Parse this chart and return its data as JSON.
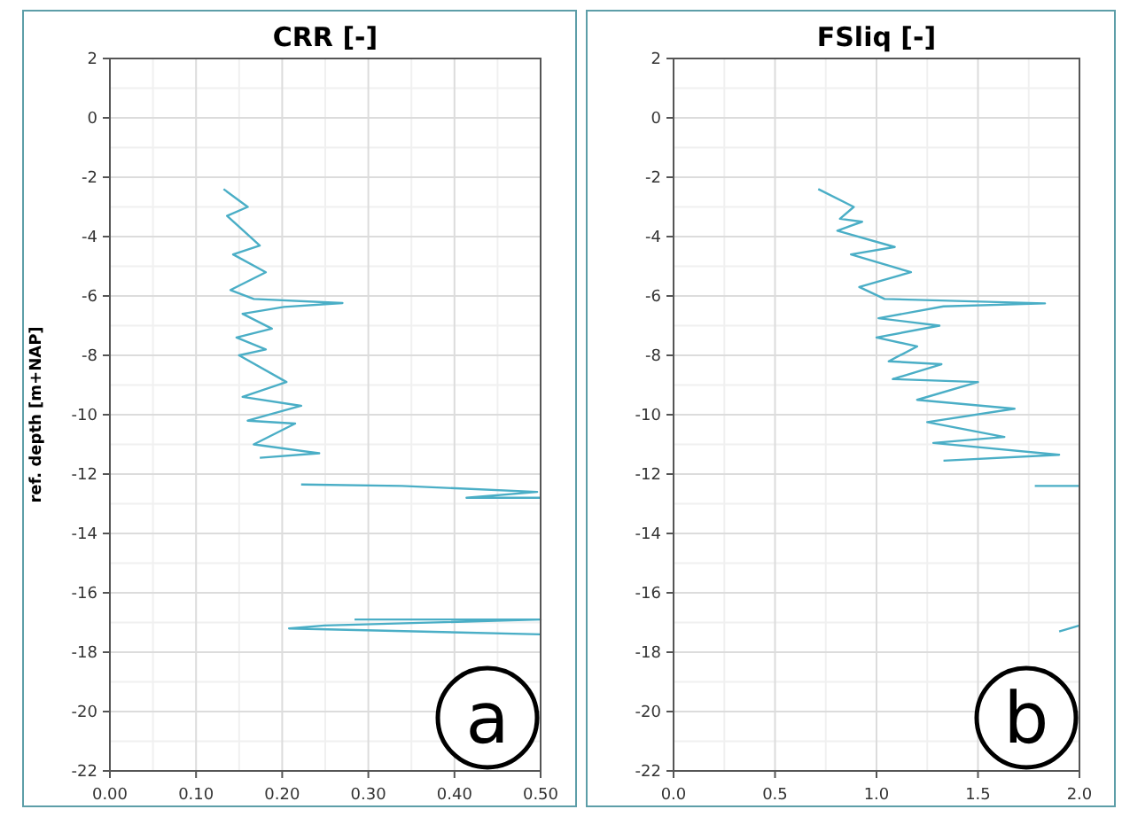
{
  "chart_data": [
    {
      "type": "line",
      "title": "CRR  [-]",
      "ylabel": "ref. depth [m+NAP]",
      "annotations": [
        "a"
      ],
      "xlim": [
        0,
        0.5
      ],
      "xticks": [
        {
          "value": 0,
          "label": "0.00"
        },
        {
          "value": 0.1,
          "label": "0.10"
        },
        {
          "value": 0.2,
          "label": "0.20"
        },
        {
          "value": 0.3,
          "label": "0.30"
        },
        {
          "value": 0.4,
          "label": "0.40"
        },
        {
          "value": 0.5,
          "label": "0.50"
        }
      ],
      "ylim": [
        -22,
        2
      ],
      "yticks": [
        2,
        0,
        -2,
        -4,
        -6,
        -8,
        -10,
        -12,
        -14,
        -16,
        -18,
        -20,
        -22
      ],
      "grid": true,
      "marker": "none",
      "line_style": "solid",
      "series": [
        {
          "color": "#4aaec6",
          "x": [
            0.132,
            0.16,
            0.136,
            0.174,
            0.143,
            0.181,
            0.14,
            0.167,
            0.27,
            0.202,
            0.154,
            0.188,
            0.147,
            0.181,
            0.15,
            0.205,
            0.154,
            0.222,
            0.16,
            0.215,
            0.167,
            0.243,
            0.174,
            null,
            0.222,
            0.339,
            0.496,
            0.414,
            0.5,
            null,
            0.284,
            0.5,
            0.249,
            0.208,
            0.5
          ],
          "values": [
            -2.4,
            -3.0,
            -3.3,
            -4.3,
            -4.6,
            -5.2,
            -5.8,
            -6.1,
            -6.24,
            -6.37,
            -6.6,
            -7.1,
            -7.4,
            -7.8,
            -8.0,
            -8.9,
            -9.4,
            -9.7,
            -10.2,
            -10.3,
            -11.0,
            -11.3,
            -11.45,
            null,
            -12.35,
            -12.4,
            -12.6,
            -12.8,
            -12.8,
            null,
            -16.9,
            -16.9,
            -17.1,
            -17.2,
            -17.4
          ]
        }
      ]
    },
    {
      "type": "line",
      "title": "FSliq  [-]",
      "annotations": [
        "b"
      ],
      "xlim": [
        0,
        2
      ],
      "xticks": [
        {
          "value": 0,
          "label": "0.0"
        },
        0.5,
        {
          "value": 1,
          "label": "1.0"
        },
        1.5,
        {
          "value": 2,
          "label": "2.0"
        }
      ],
      "ylim": [
        -22,
        2
      ],
      "yticks": [
        2,
        0,
        -2,
        -4,
        -6,
        -8,
        -10,
        -12,
        -14,
        -16,
        -18,
        -20,
        -22
      ],
      "grid": true,
      "marker": "none",
      "line_style": "solid",
      "series": [
        {
          "color": "#4aaec6",
          "x": [
            0.713,
            0.888,
            0.82,
            0.929,
            0.807,
            1.09,
            0.874,
            1.17,
            0.915,
            1.04,
            1.83,
            1.33,
            1.01,
            1.31,
            1.0,
            1.2,
            1.06,
            1.32,
            1.08,
            1.5,
            1.2,
            1.68,
            1.25,
            1.63,
            1.28,
            1.9,
            1.33,
            null,
            1.78,
            2.0,
            null,
            1.9,
            2.0
          ],
          "values": [
            -2.4,
            -3.0,
            -3.4,
            -3.5,
            -3.8,
            -4.35,
            -4.6,
            -5.2,
            -5.7,
            -6.1,
            -6.25,
            -6.35,
            -6.75,
            -7.0,
            -7.4,
            -7.7,
            -8.2,
            -8.3,
            -8.8,
            -8.9,
            -9.5,
            -9.8,
            -10.25,
            -10.75,
            -10.95,
            -11.35,
            -11.55,
            null,
            -12.4,
            -12.4,
            null,
            -17.3,
            -17.1
          ]
        }
      ]
    }
  ]
}
